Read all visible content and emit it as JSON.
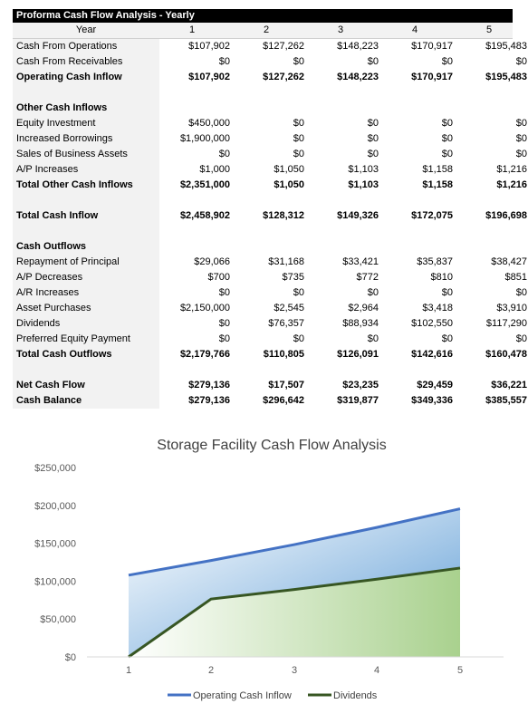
{
  "sheet": {
    "title": "Proforma Cash Flow Analysis - Yearly",
    "header": {
      "label": "Year",
      "years": [
        "1",
        "2",
        "3",
        "4",
        "5"
      ]
    },
    "rows": [
      {
        "label": "Cash From Operations",
        "values": [
          "$107,902",
          "$127,262",
          "$148,223",
          "$170,917",
          "$195,483"
        ],
        "bold": false
      },
      {
        "label": "Cash From Receivables",
        "values": [
          "$0",
          "$0",
          "$0",
          "$0",
          "$0"
        ],
        "bold": false
      },
      {
        "label": "Operating Cash Inflow",
        "values": [
          "$107,902",
          "$127,262",
          "$148,223",
          "$170,917",
          "$195,483"
        ],
        "bold": true
      },
      {
        "label": "",
        "values": [
          "",
          "",
          "",
          "",
          ""
        ],
        "bold": false
      },
      {
        "label": "Other Cash Inflows",
        "values": [
          "",
          "",
          "",
          "",
          ""
        ],
        "bold": true
      },
      {
        "label": "Equity Investment",
        "values": [
          "$450,000",
          "$0",
          "$0",
          "$0",
          "$0"
        ],
        "bold": false
      },
      {
        "label": "Increased Borrowings",
        "values": [
          "$1,900,000",
          "$0",
          "$0",
          "$0",
          "$0"
        ],
        "bold": false
      },
      {
        "label": "Sales of Business Assets",
        "values": [
          "$0",
          "$0",
          "$0",
          "$0",
          "$0"
        ],
        "bold": false
      },
      {
        "label": "A/P Increases",
        "values": [
          "$1,000",
          "$1,050",
          "$1,103",
          "$1,158",
          "$1,216"
        ],
        "bold": false
      },
      {
        "label": "Total Other Cash Inflows",
        "values": [
          "$2,351,000",
          "$1,050",
          "$1,103",
          "$1,158",
          "$1,216"
        ],
        "bold": true
      },
      {
        "label": "",
        "values": [
          "",
          "",
          "",
          "",
          ""
        ],
        "bold": false
      },
      {
        "label": "Total Cash Inflow",
        "values": [
          "$2,458,902",
          "$128,312",
          "$149,326",
          "$172,075",
          "$196,698"
        ],
        "bold": true
      },
      {
        "label": "",
        "values": [
          "",
          "",
          "",
          "",
          ""
        ],
        "bold": false
      },
      {
        "label": "Cash Outflows",
        "values": [
          "",
          "",
          "",
          "",
          ""
        ],
        "bold": true
      },
      {
        "label": "Repayment of Principal",
        "values": [
          "$29,066",
          "$31,168",
          "$33,421",
          "$35,837",
          "$38,427"
        ],
        "bold": false
      },
      {
        "label": "A/P Decreases",
        "values": [
          "$700",
          "$735",
          "$772",
          "$810",
          "$851"
        ],
        "bold": false
      },
      {
        "label": "A/R Increases",
        "values": [
          "$0",
          "$0",
          "$0",
          "$0",
          "$0"
        ],
        "bold": false
      },
      {
        "label": "Asset Purchases",
        "values": [
          "$2,150,000",
          "$2,545",
          "$2,964",
          "$3,418",
          "$3,910"
        ],
        "bold": false
      },
      {
        "label": "Dividends",
        "values": [
          "$0",
          "$76,357",
          "$88,934",
          "$102,550",
          "$117,290"
        ],
        "bold": false
      },
      {
        "label": "Preferred Equity Payment",
        "values": [
          "$0",
          "$0",
          "$0",
          "$0",
          "$0"
        ],
        "bold": false
      },
      {
        "label": "Total Cash Outflows",
        "values": [
          "$2,179,766",
          "$110,805",
          "$126,091",
          "$142,616",
          "$160,478"
        ],
        "bold": true
      },
      {
        "label": "",
        "values": [
          "",
          "",
          "",
          "",
          ""
        ],
        "bold": false
      },
      {
        "label": "Net Cash Flow",
        "values": [
          "$279,136",
          "$17,507",
          "$23,235",
          "$29,459",
          "$36,221"
        ],
        "bold": true
      },
      {
        "label": "Cash Balance",
        "values": [
          "$279,136",
          "$296,642",
          "$319,877",
          "$349,336",
          "$385,557"
        ],
        "bold": true
      }
    ]
  },
  "chart_data": {
    "type": "area",
    "title": "Storage Facility Cash Flow Analysis",
    "x": [
      "1",
      "2",
      "3",
      "4",
      "5"
    ],
    "ylim": [
      0,
      250000
    ],
    "yticks": [
      0,
      50000,
      100000,
      150000,
      200000,
      250000
    ],
    "ytick_labels": [
      "$0",
      "$50,000",
      "$100,000",
      "$150,000",
      "$200,000",
      "$250,000"
    ],
    "grid": false,
    "legend_position": "bottom",
    "series": [
      {
        "name": "Operating Cash Inflow",
        "values": [
          107902,
          127262,
          148223,
          170917,
          195483
        ],
        "color": "#4472c4",
        "fill": "#9dc3e6"
      },
      {
        "name": "Dividends",
        "values": [
          0,
          76357,
          88934,
          102550,
          117290
        ],
        "color": "#375623",
        "fill": "#a9d18e"
      }
    ]
  }
}
